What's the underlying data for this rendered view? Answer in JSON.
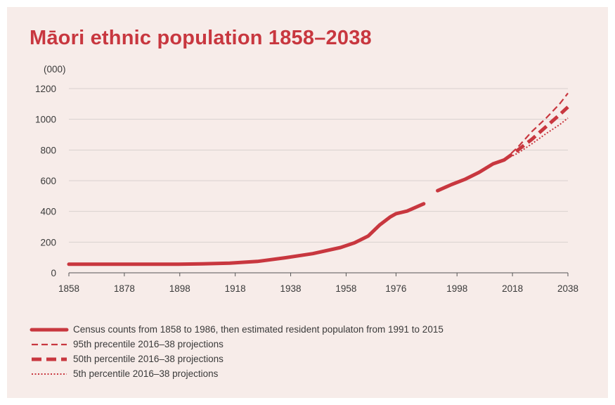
{
  "title": "Māori ethnic population 1858–2038",
  "colors": {
    "accent": "#c8373f",
    "background": "#f7ece9",
    "grid": "#d9d1cf"
  },
  "chart_data": {
    "type": "line",
    "title": "Māori ethnic population 1858–2038",
    "ylabel": "(000)",
    "xlabel": "",
    "xlim": [
      1858,
      2038
    ],
    "ylim": [
      0,
      1200
    ],
    "x_ticks": [
      "1858",
      "1878",
      "1898",
      "1918",
      "1938",
      "1958",
      "1976",
      "1998",
      "2018",
      "2038"
    ],
    "y_ticks": [
      "0",
      "200",
      "400",
      "600",
      "800",
      "1000",
      "1200"
    ],
    "grid": true,
    "legend_placement": "bottom",
    "series": [
      {
        "name": "Census counts from 1858 to 1986, then estimated resident populaton from 1991 to 2015",
        "style": "solid",
        "segments": [
          [
            [
              1858,
              56
            ],
            [
              1878,
              56
            ],
            [
              1896,
              56
            ],
            [
              1906,
              58
            ],
            [
              1916,
              63
            ],
            [
              1926,
              74
            ],
            [
              1936,
              98
            ],
            [
              1946,
              125
            ],
            [
              1956,
              165
            ],
            [
              1961,
              195
            ],
            [
              1966,
              240
            ],
            [
              1970,
              310
            ],
            [
              1974,
              365
            ],
            [
              1976,
              385
            ],
            [
              1980,
              402
            ],
            [
              1986,
              450
            ]
          ],
          [
            [
              1991,
              535
            ],
            [
              1996,
              575
            ],
            [
              2001,
              610
            ],
            [
              2006,
              655
            ],
            [
              2011,
              710
            ],
            [
              2015,
              735
            ]
          ]
        ]
      },
      {
        "name": "95th precentile 2016–38 projections",
        "style": "dash",
        "points": [
          [
            2015,
            735
          ],
          [
            2020,
            820
          ],
          [
            2025,
            920
          ],
          [
            2030,
            1005
          ],
          [
            2035,
            1100
          ],
          [
            2038,
            1170
          ]
        ]
      },
      {
        "name": "50th percentile 2016–38 projections",
        "style": "longdash",
        "points": [
          [
            2015,
            735
          ],
          [
            2020,
            800
          ],
          [
            2025,
            870
          ],
          [
            2030,
            950
          ],
          [
            2035,
            1030
          ],
          [
            2038,
            1080
          ]
        ]
      },
      {
        "name": "5th percentile 2016–38 projections",
        "style": "dot",
        "points": [
          [
            2015,
            735
          ],
          [
            2020,
            780
          ],
          [
            2025,
            840
          ],
          [
            2030,
            905
          ],
          [
            2035,
            965
          ],
          [
            2038,
            1008
          ]
        ]
      }
    ]
  }
}
